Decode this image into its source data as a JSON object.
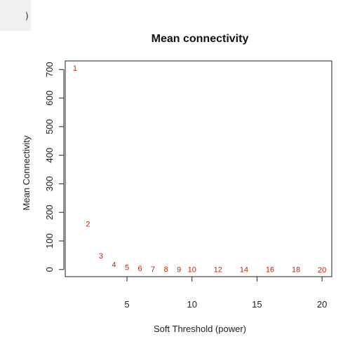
{
  "chart_data": {
    "type": "scatter",
    "title": "Mean connectivity",
    "xlabel": "Soft Threshold (power)",
    "ylabel": "Mean Connectivity",
    "xlim": [
      0.25,
      20.75
    ],
    "ylim": [
      -25,
      730
    ],
    "xticks": [
      5,
      10,
      15,
      20
    ],
    "yticks": [
      0,
      100,
      200,
      300,
      400,
      500,
      600,
      700
    ],
    "grid": false,
    "point_color": "#cc2200",
    "points": [
      {
        "x": 1,
        "y": 705,
        "label": "1"
      },
      {
        "x": 2,
        "y": 160,
        "label": "2"
      },
      {
        "x": 3,
        "y": 48,
        "label": "3"
      },
      {
        "x": 4,
        "y": 18,
        "label": "4"
      },
      {
        "x": 5,
        "y": 8,
        "label": "5"
      },
      {
        "x": 6,
        "y": 4,
        "label": "6"
      },
      {
        "x": 7,
        "y": 2,
        "label": "7"
      },
      {
        "x": 8,
        "y": 1.5,
        "label": "8"
      },
      {
        "x": 9,
        "y": 1,
        "label": "9"
      },
      {
        "x": 10,
        "y": 0.8,
        "label": "10"
      },
      {
        "x": 12,
        "y": 0.5,
        "label": "12"
      },
      {
        "x": 14,
        "y": 0.3,
        "label": "14"
      },
      {
        "x": 16,
        "y": 0.2,
        "label": "16"
      },
      {
        "x": 18,
        "y": 0.15,
        "label": "18"
      },
      {
        "x": 20,
        "y": 0.1,
        "label": "20"
      }
    ]
  },
  "corner_glyph": ")"
}
